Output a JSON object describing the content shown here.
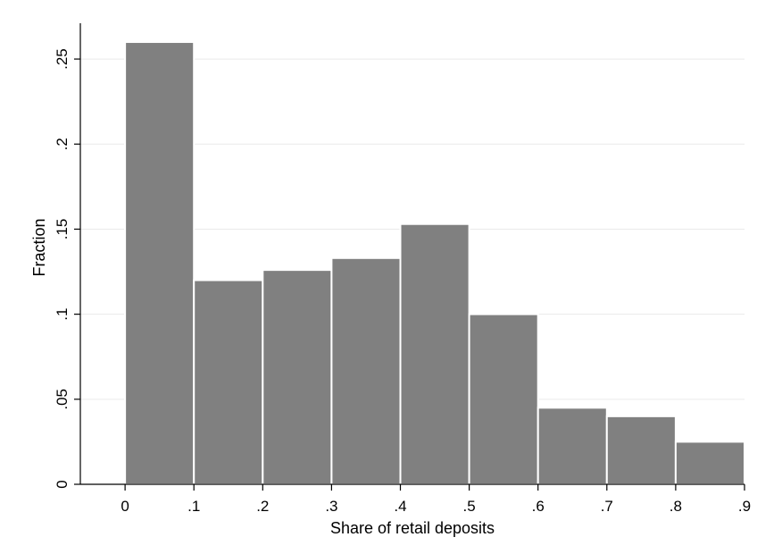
{
  "chart_data": {
    "type": "bar",
    "xlabel": "Share of retail deposits",
    "ylabel": "Fraction",
    "bin_edges": [
      0,
      0.1,
      0.2,
      0.3,
      0.4,
      0.5,
      0.6,
      0.7,
      0.8,
      0.9
    ],
    "values": [
      0.26,
      0.12,
      0.126,
      0.133,
      0.153,
      0.1,
      0.045,
      0.04,
      0.025
    ],
    "xlim": [
      -0.065,
      0.9
    ],
    "ylim": [
      0,
      0.27
    ],
    "x_ticks": [
      {
        "value": 0,
        "label": "0"
      },
      {
        "value": 0.1,
        "label": ".1"
      },
      {
        "value": 0.2,
        "label": ".2"
      },
      {
        "value": 0.3,
        "label": ".3"
      },
      {
        "value": 0.4,
        "label": ".4"
      },
      {
        "value": 0.5,
        "label": ".5"
      },
      {
        "value": 0.6,
        "label": ".6"
      },
      {
        "value": 0.7,
        "label": ".7"
      },
      {
        "value": 0.8,
        "label": ".8"
      },
      {
        "value": 0.9,
        "label": ".9"
      }
    ],
    "y_ticks": [
      {
        "value": 0,
        "label": "0"
      },
      {
        "value": 0.05,
        "label": ".05"
      },
      {
        "value": 0.1,
        "label": ".1"
      },
      {
        "value": 0.15,
        "label": ".15"
      },
      {
        "value": 0.2,
        "label": ".2"
      },
      {
        "value": 0.25,
        "label": ".25"
      }
    ],
    "grid": true,
    "colors": {
      "bar": "#808080",
      "bar_edge": "#ffffff",
      "grid": "#eaeaea",
      "axis": "#000000"
    }
  }
}
